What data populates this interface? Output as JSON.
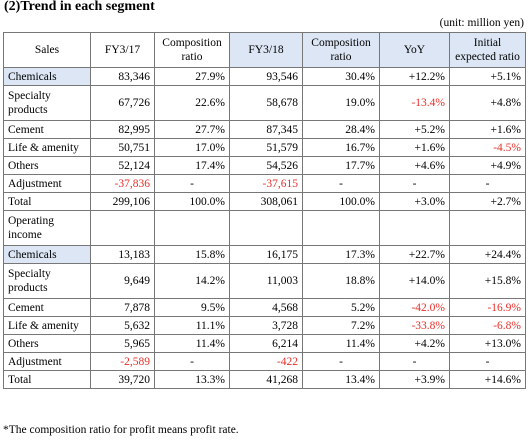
{
  "title": "(2)Trend in each segment",
  "unit": "(unit: million yen)",
  "header": {
    "sales": "Sales",
    "fy17": "FY3/17",
    "comp17": "Composition ratio",
    "fy18": "FY3/18",
    "comp18": "Composition ratio",
    "yoy": "YoY",
    "initial": "Initial expected ratio"
  },
  "sales_rows": [
    {
      "label": "Chemicals",
      "fy17": "83,346",
      "c17": "27.9%",
      "fy18": "93,546",
      "c18": "30.4%",
      "yoy": "+12.2%",
      "init": "+5.1%"
    },
    {
      "label": "Specialty products",
      "fy17": "67,726",
      "c17": "22.6%",
      "fy18": "58,678",
      "c18": "19.0%",
      "yoy": "-13.4%",
      "init": "+4.8%"
    },
    {
      "label": "Cement",
      "fy17": "82,995",
      "c17": "27.7%",
      "fy18": "87,345",
      "c18": "28.4%",
      "yoy": "+5.2%",
      "init": "+1.6%"
    },
    {
      "label": "Life & amenity",
      "fy17": "50,751",
      "c17": "17.0%",
      "fy18": "51,579",
      "c18": "16.7%",
      "yoy": "+1.6%",
      "init": "-4.5%"
    },
    {
      "label": "Others",
      "fy17": "52,124",
      "c17": "17.4%",
      "fy18": "54,526",
      "c18": "17.7%",
      "yoy": "+4.6%",
      "init": "+4.9%"
    },
    {
      "label": "Adjustment",
      "fy17": "-37,836",
      "c17": "-",
      "fy18": "-37,615",
      "c18": "-",
      "yoy": "-",
      "init": "-"
    },
    {
      "label": "Total",
      "fy17": "299,106",
      "c17": "100.0%",
      "fy18": "308,061",
      "c18": "100.0%",
      "yoy": "+3.0%",
      "init": "+2.7%"
    }
  ],
  "op_label": "Operating income",
  "op_rows": [
    {
      "label": "Chemicals",
      "fy17": "13,183",
      "c17": "15.8%",
      "fy18": "16,175",
      "c18": "17.3%",
      "yoy": "+22.7%",
      "init": "+24.4%"
    },
    {
      "label": "Specialty products",
      "fy17": "9,649",
      "c17": "14.2%",
      "fy18": "11,003",
      "c18": "18.8%",
      "yoy": "+14.0%",
      "init": "+15.8%"
    },
    {
      "label": "Cement",
      "fy17": "7,878",
      "c17": "9.5%",
      "fy18": "4,568",
      "c18": "5.2%",
      "yoy": "-42.0%",
      "init": "-16.9%"
    },
    {
      "label": "Life & amenity",
      "fy17": "5,632",
      "c17": "11.1%",
      "fy18": "3,728",
      "c18": "7.2%",
      "yoy": "-33.8%",
      "init": "-6.8%"
    },
    {
      "label": "Others",
      "fy17": "5,965",
      "c17": "11.4%",
      "fy18": "6,214",
      "c18": "11.4%",
      "yoy": "+4.2%",
      "init": "+13.0%"
    },
    {
      "label": "Adjustment",
      "fy17": "-2,589",
      "c17": "-",
      "fy18": "-422",
      "c18": "-",
      "yoy": "-",
      "init": "-"
    },
    {
      "label": "Total",
      "fy17": "39,720",
      "c17": "13.3%",
      "fy18": "41,268",
      "c18": "13.4%",
      "yoy": "+3.9%",
      "init": "+14.6%"
    }
  ],
  "footnote": "*The composition ratio for profit means profit rate.",
  "colors": {
    "highlight": "#dce6f5",
    "negative": "#e8302a"
  }
}
